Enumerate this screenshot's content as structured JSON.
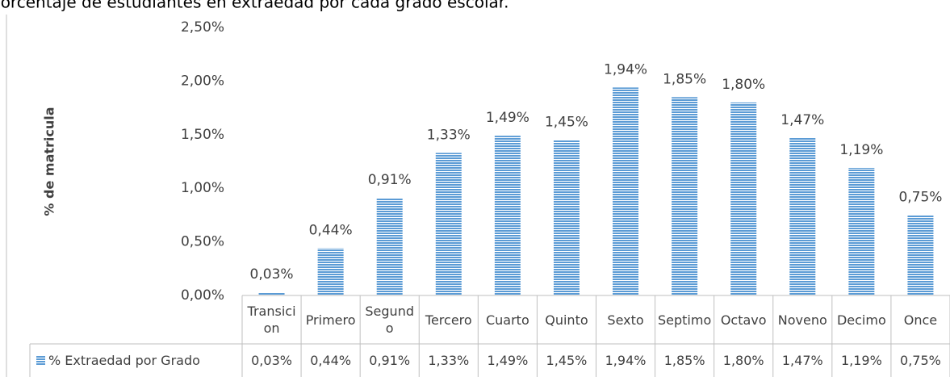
{
  "chart_data": {
    "type": "bar",
    "title": "porcentaje de estudiantes en extraedad por cada grado escolar.",
    "y_label": "% de matricula",
    "categories": [
      "Transicion",
      "Primero",
      "Segundo",
      "Tercero",
      "Cuarto",
      "Quinto",
      "Sexto",
      "Septimo",
      "Octavo",
      "Noveno",
      "Decimo",
      "Once"
    ],
    "series": [
      {
        "name": "% Extraedad por Grado",
        "color": "#5b9bd5",
        "values": [
          0.03,
          0.44,
          0.91,
          1.33,
          1.49,
          1.45,
          1.94,
          1.85,
          1.8,
          1.47,
          1.19,
          0.75
        ],
        "value_labels": [
          "0,03%",
          "0,44%",
          "0,91%",
          "1,33%",
          "1,49%",
          "1,45%",
          "1,94%",
          "1,85%",
          "1,80%",
          "1,47%",
          "1,19%",
          "0,75%"
        ]
      }
    ],
    "ylim": [
      0,
      2.5
    ],
    "yticks": [
      {
        "value": 0,
        "label": "0,00%"
      },
      {
        "value": 0.5,
        "label": "0,50%"
      },
      {
        "value": 1,
        "label": "1,00%"
      },
      {
        "value": 1.5,
        "label": "1,50%"
      },
      {
        "value": 2,
        "label": "2,00%"
      },
      {
        "value": 2.5,
        "label": "2,50%"
      }
    ],
    "grid": false,
    "data_table": true
  }
}
